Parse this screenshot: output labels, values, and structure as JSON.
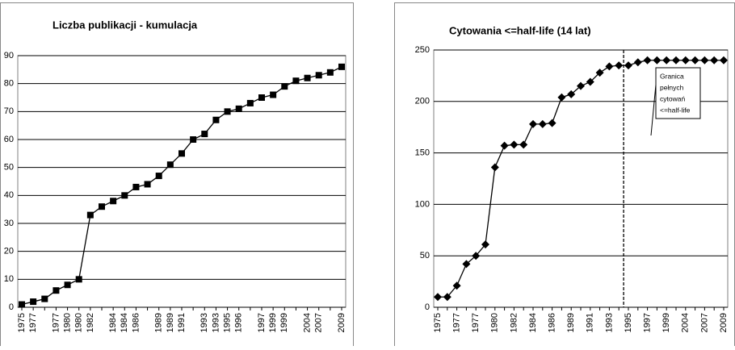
{
  "chart_data": [
    {
      "type": "line",
      "title": "Liczba publikacji - kumulacja",
      "categories": [
        "1975",
        "1977",
        null,
        "1977",
        "1980",
        "1980",
        "1982",
        null,
        "1984",
        "1984",
        "1986",
        null,
        "1989",
        "1989",
        "1991",
        null,
        "1993",
        "1993",
        "1995",
        "1996",
        null,
        "1997",
        "1999",
        "1999",
        null,
        "2004",
        "2007",
        null,
        "2009"
      ],
      "series": [
        {
          "name": "Liczba publikacji",
          "color": "#000000",
          "values": [
            1,
            2,
            3,
            6,
            8,
            10,
            33,
            36,
            38,
            40,
            43,
            44,
            47,
            51,
            55,
            60,
            62,
            67,
            70,
            71,
            73,
            75,
            76,
            79,
            81,
            82,
            83,
            84,
            86
          ]
        }
      ],
      "ylim": [
        0,
        90
      ],
      "yticks": [
        0,
        10,
        20,
        30,
        40,
        50,
        60,
        70,
        80,
        90
      ],
      "grid": true,
      "marker": "square"
    },
    {
      "type": "line",
      "title": "Cytowania <=half-life (14 lat)",
      "categories": [
        "1975",
        null,
        "1977",
        null,
        "1977",
        null,
        "1980",
        null,
        "1982",
        null,
        "1984",
        null,
        "1986",
        null,
        "1989",
        null,
        "1991",
        null,
        "1993",
        null,
        "1995",
        null,
        "1997",
        null,
        "1999",
        null,
        "2004",
        null,
        "2007",
        null,
        "2009"
      ],
      "series": [
        {
          "name": "Cytowania",
          "color": "#000000",
          "values": [
            10,
            10,
            21,
            42,
            50,
            61,
            136,
            157,
            158,
            158,
            178,
            178,
            179,
            204,
            207,
            215,
            219,
            228,
            234,
            235,
            235,
            238,
            240,
            240,
            240,
            240,
            240,
            240,
            240,
            240,
            240
          ]
        }
      ],
      "ylim": [
        0,
        250
      ],
      "yticks": [
        0,
        50,
        100,
        150,
        200,
        250
      ],
      "grid": true,
      "marker": "diamond",
      "annotations": [
        "Granica",
        "pełnych",
        "cytowań",
        "<=half-life"
      ]
    }
  ]
}
